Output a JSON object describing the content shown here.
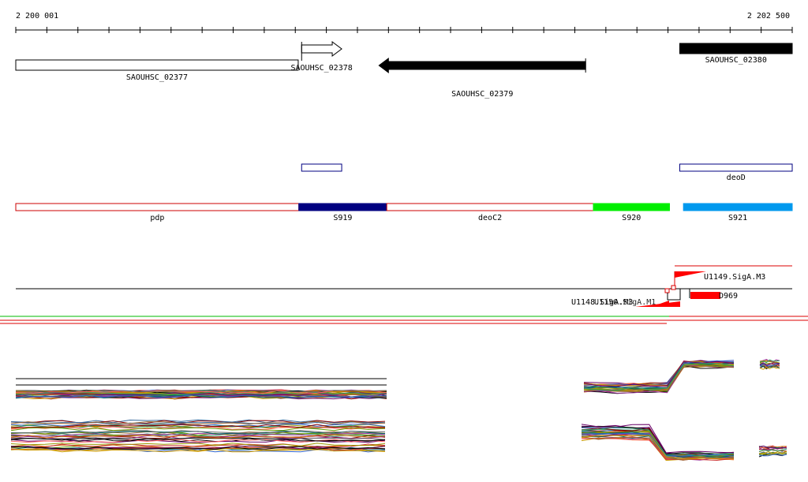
{
  "ruler": {
    "start_label": "2 200 001",
    "end_label": "2 202 500",
    "start": 2200001,
    "end": 2202500
  },
  "genes": [
    {
      "name": "SAOUHSC_02377",
      "start": 2200001,
      "end": 2200910,
      "strand": "-",
      "fill": "#ffffff"
    },
    {
      "name": "SAOUHSC_02378",
      "start": 2200921,
      "end": 2201050,
      "strand": "+",
      "fill": "#ffffff"
    },
    {
      "name": "SAOUHSC_02379",
      "start": 2201170,
      "end": 2201835,
      "strand": "-",
      "fill": "#000000"
    },
    {
      "name": "SAOUHSC_02380",
      "start": 2202138,
      "end": 2202500,
      "strand": "+",
      "fill": "#000000"
    }
  ],
  "operon_boxes": [
    {
      "name": "",
      "start": 2200921,
      "end": 2201050
    },
    {
      "name": "deoD",
      "start": 2202138,
      "end": 2202500
    }
  ],
  "segments": [
    {
      "name": "pdp",
      "start": 2200001,
      "end": 2200912,
      "color": "#ffffff",
      "border": "#cc0000"
    },
    {
      "name": "S919",
      "start": 2200912,
      "end": 2201195,
      "color": "#000080",
      "border": "#000080"
    },
    {
      "name": "deoC2",
      "start": 2201195,
      "end": 2201860,
      "color": "#ffffff",
      "border": "#cc0000"
    },
    {
      "name": "S920",
      "start": 2201860,
      "end": 2202105,
      "color": "#00ee00",
      "border": "#00ee00"
    },
    {
      "name": "S921",
      "start": 2202150,
      "end": 2202500,
      "color": "#0099ee",
      "border": "#0099ee"
    }
  ],
  "features": {
    "labels": [
      "U1149.SigA.M3",
      "D969",
      "U1148.SigA.M3",
      "U1150.SigA.M1"
    ]
  },
  "colors": {
    "segment_outline": "#cc0000",
    "promoter": "#ff0000",
    "coverage_green": "#00bb00",
    "coverage_red": "#dd0000"
  }
}
